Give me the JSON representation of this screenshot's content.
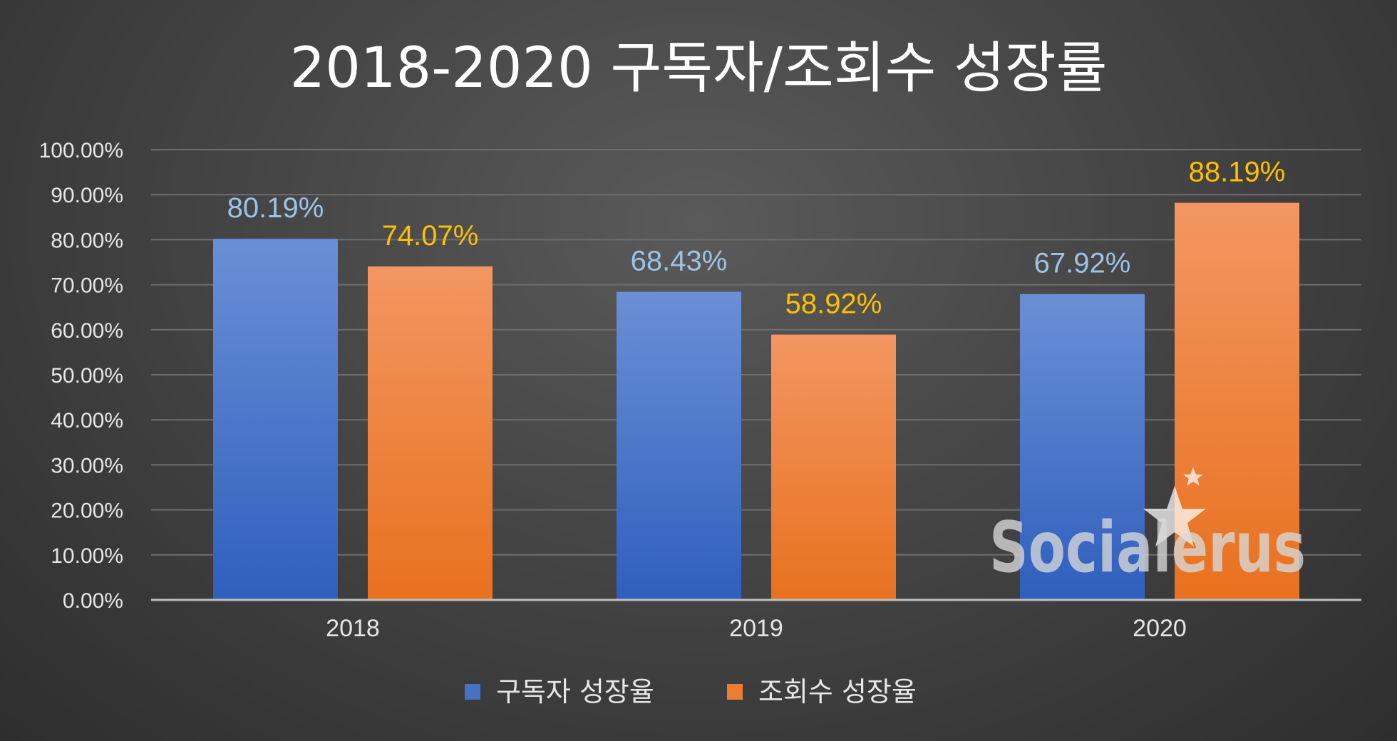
{
  "chart_data": {
    "type": "bar",
    "title": "2018-2020 구독자/조회수 성장률",
    "categories": [
      "2018",
      "2019",
      "2020"
    ],
    "series": [
      {
        "name": "구독자 성장율",
        "values": [
          80.19,
          68.43,
          67.92
        ],
        "labels": [
          "80.19%",
          "68.43%",
          "67.92%"
        ],
        "color": "#4472c4",
        "label_color": "#9dc3e6"
      },
      {
        "name": "조회수 성장율",
        "values": [
          74.07,
          58.92,
          88.19
        ],
        "labels": [
          "74.07%",
          "58.92%",
          "88.19%"
        ],
        "color": "#ed7d31",
        "label_color": "#ffc000"
      }
    ],
    "ylim": [
      0,
      100
    ],
    "yticks": [
      0,
      10,
      20,
      30,
      40,
      50,
      60,
      70,
      80,
      90,
      100
    ],
    "ytick_labels": [
      "0.00%",
      "10.00%",
      "20.00%",
      "30.00%",
      "40.00%",
      "50.00%",
      "60.00%",
      "70.00%",
      "80.00%",
      "90.00%",
      "100.00%"
    ],
    "grid": true,
    "legend_position": "bottom"
  },
  "watermark": {
    "text": "Socialerus",
    "icon": "star-icon"
  }
}
